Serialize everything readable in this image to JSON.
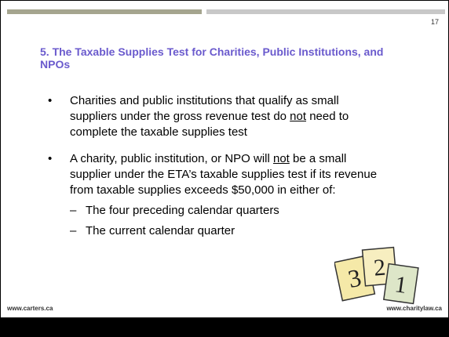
{
  "slide": {
    "page_number": "17",
    "title": "5. The Taxable Supplies Test for Charities, Public Institutions, and NPOs",
    "bullets": [
      {
        "before": "Charities and public institutions that qualify as small suppliers under the gross revenue test do ",
        "emphasis": "not",
        "after": " need to complete the taxable supplies test"
      },
      {
        "before": "A charity, public institution, or NPO will ",
        "emphasis": "not",
        "after": " be a small supplier under the ETA’s taxable supplies test if its revenue from taxable supplies exceeds $50,000 in either of:",
        "sub_bullets": [
          "The four preceding calendar quarters",
          "The current calendar quarter"
        ]
      }
    ],
    "clipart_numbers": [
      "3",
      "2",
      "1"
    ],
    "footer_left": "www.carters.ca",
    "footer_right": "www.charitylaw.ca"
  }
}
